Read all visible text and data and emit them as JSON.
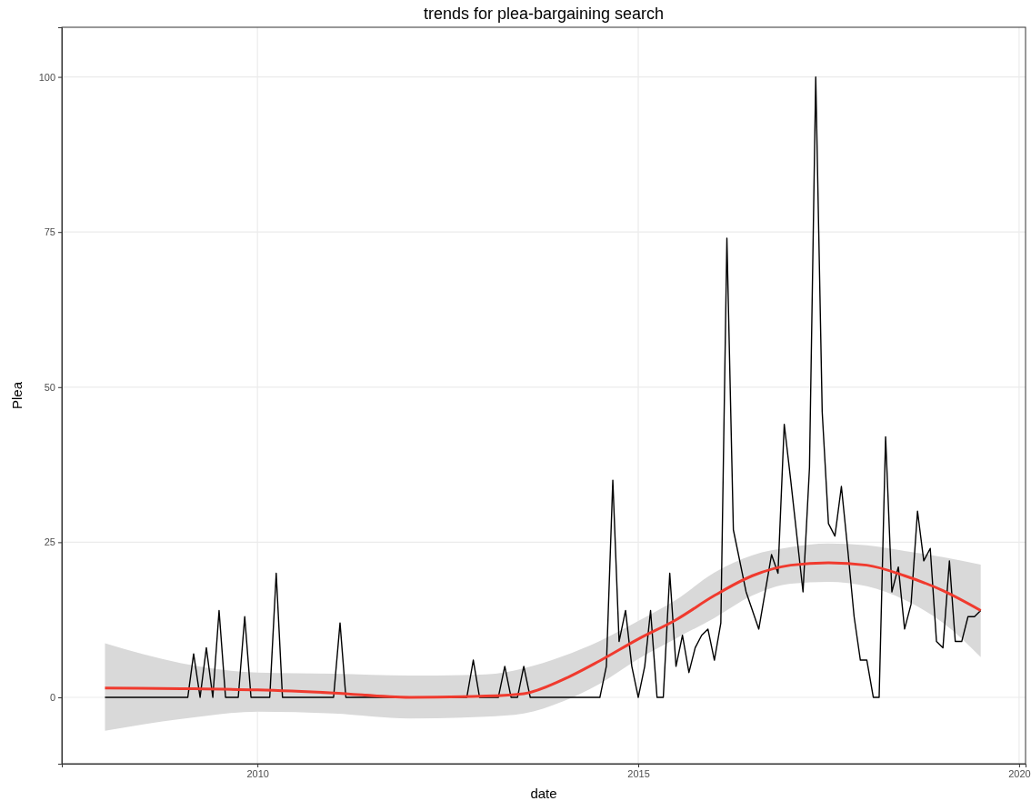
{
  "chart_data": {
    "type": "line",
    "title": "trends for plea-bargaining search",
    "xlabel": "date",
    "ylabel": "Plea",
    "xlim": [
      "2007-06-08",
      "2020-02-01"
    ],
    "ylim": [
      -10.7,
      108
    ],
    "xticks": [
      {
        "value": "2010",
        "label": "2010"
      },
      {
        "value": "2015",
        "label": "2015"
      },
      {
        "value": "2020",
        "label": "2020"
      }
    ],
    "yticks": [
      0,
      25,
      50,
      75,
      100
    ],
    "grid": true,
    "line_style": "solid",
    "series": [
      {
        "color": "#000000",
        "x": [
          "2008-01",
          "2009-02",
          "2009-03",
          "2009-04",
          "2009-05",
          "2009-06",
          "2009-07",
          "2009-08",
          "2009-10",
          "2009-11",
          "2009-12",
          "2010-03",
          "2010-04",
          "2010-05",
          "2011-01",
          "2011-02",
          "2011-03",
          "2012-10",
          "2012-11",
          "2012-12",
          "2013-03",
          "2013-04",
          "2013-05",
          "2013-06",
          "2013-07",
          "2013-08",
          "2014-07",
          "2014-08",
          "2014-09",
          "2014-10",
          "2014-11",
          "2014-12",
          "2015-01",
          "2015-02",
          "2015-03",
          "2015-04",
          "2015-05",
          "2015-06",
          "2015-07",
          "2015-08",
          "2015-09",
          "2015-10",
          "2015-11",
          "2015-12",
          "2016-01",
          "2016-02",
          "2016-03",
          "2016-04",
          "2016-06",
          "2016-08",
          "2016-10",
          "2016-11",
          "2016-12",
          "2017-01",
          "2017-03",
          "2017-04",
          "2017-05",
          "2017-06",
          "2017-07",
          "2017-08",
          "2017-09",
          "2017-10",
          "2017-11",
          "2017-12",
          "2018-01",
          "2018-02",
          "2018-03",
          "2018-04",
          "2018-05",
          "2018-06",
          "2018-07",
          "2018-08",
          "2018-09",
          "2018-10",
          "2018-11",
          "2018-12",
          "2019-01",
          "2019-02",
          "2019-03",
          "2019-04",
          "2019-05",
          "2019-06",
          "2019-07"
        ],
        "values": [
          0,
          0,
          7,
          0,
          8,
          0,
          14,
          0,
          0,
          13,
          0,
          0,
          20,
          0,
          0,
          12,
          0,
          0,
          6,
          0,
          0,
          5,
          0,
          0,
          5,
          0,
          0,
          5,
          35,
          9,
          14,
          5,
          0,
          5,
          14,
          0,
          0,
          20,
          5,
          10,
          4,
          8,
          10,
          11,
          6,
          12,
          74,
          27,
          17,
          11,
          23,
          20,
          44,
          35,
          17,
          37,
          100,
          46,
          28,
          26,
          34,
          24,
          13,
          6,
          6,
          0,
          0,
          42,
          17,
          21,
          11,
          15,
          30,
          22,
          24,
          9,
          8,
          22,
          9,
          9,
          13,
          13,
          14
        ]
      },
      {
        "color": "#f03a2e",
        "x": [
          "2008-01",
          "2009-01",
          "2010-01",
          "2011-01",
          "2012-01",
          "2013-01",
          "2013-07",
          "2014-01",
          "2014-07",
          "2015-01",
          "2015-07",
          "2016-01",
          "2016-07",
          "2017-01",
          "2017-07",
          "2018-01",
          "2018-07",
          "2019-01",
          "2019-07"
        ],
        "values": [
          1.5,
          1.4,
          1.2,
          0.7,
          0,
          0.2,
          0.6,
          2.8,
          5.9,
          9.4,
          12.5,
          16.4,
          19.6,
          21.3,
          21.7,
          21.3,
          19.6,
          17.2,
          14
        ],
        "lower": [
          -5.4,
          -3.5,
          -2.3,
          -2.6,
          -3.4,
          -3.1,
          -2.6,
          -0.7,
          2.2,
          6.2,
          9.5,
          12.8,
          16.4,
          18.3,
          18.6,
          17.9,
          15.7,
          12,
          6.5
        ],
        "upper": [
          8.7,
          5.5,
          4,
          3.8,
          3.5,
          3.7,
          4.7,
          6.6,
          9.1,
          12.3,
          15.7,
          20.1,
          22.9,
          24.2,
          24.8,
          24.5,
          23.6,
          22.6,
          21.4
        ]
      }
    ]
  }
}
